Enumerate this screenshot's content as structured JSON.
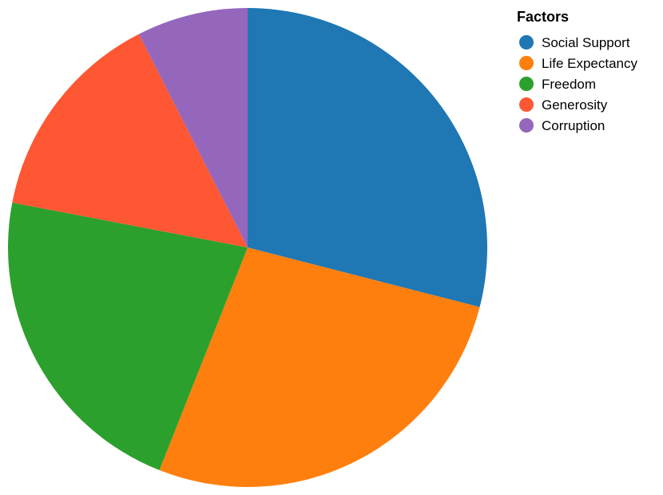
{
  "chart_data": {
    "type": "pie",
    "title": "",
    "legend_title": "Factors",
    "legend_position": "top-right",
    "categories": [
      "Social Support",
      "Life Expectancy",
      "Freedom",
      "Generosity",
      "Corruption"
    ],
    "values": [
      0.29,
      0.27,
      0.22,
      0.145,
      0.075
    ],
    "colors": [
      "#1f77b4",
      "#ff7f0e",
      "#2ca02c",
      "#ff5733",
      "#9467bd"
    ]
  }
}
